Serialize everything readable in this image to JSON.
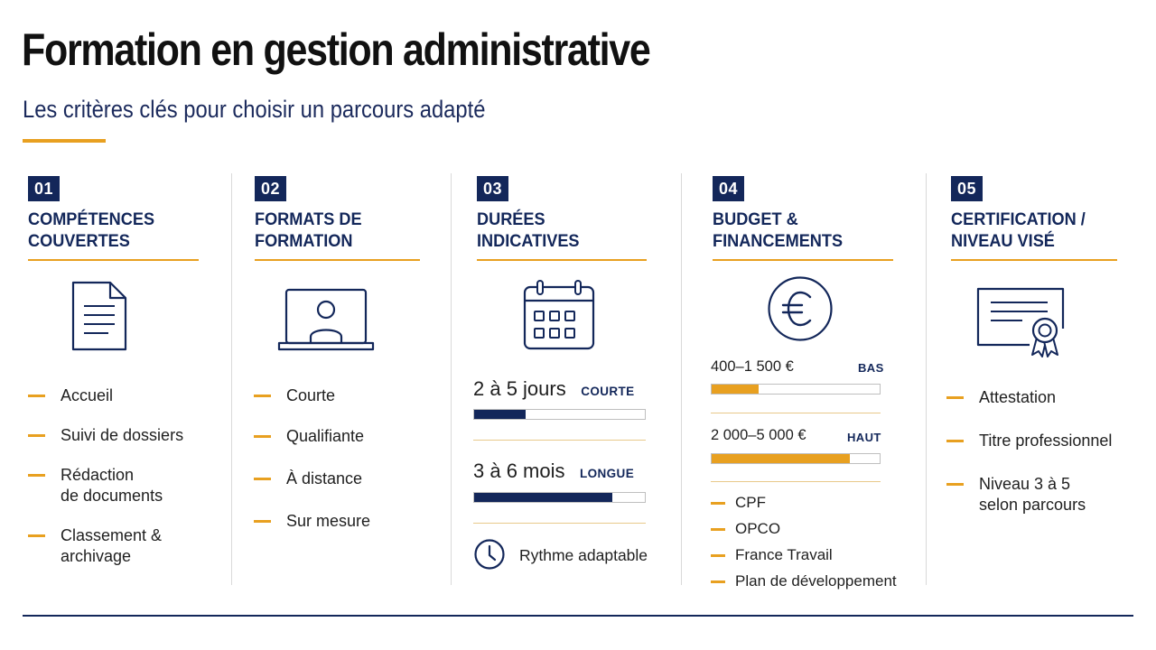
{
  "header": {
    "title": "Formation en gestion administrative",
    "subtitle": "Les critères clés pour choisir un parcours adapté"
  },
  "colors": {
    "navy": "#13275a",
    "accent": "#e8a020"
  },
  "columns": [
    {
      "number": "01",
      "title_line1": "COMPÉTENCES",
      "title_line2": "COUVERTES",
      "icon": "document-icon",
      "items": [
        "Accueil",
        "Suivi de dossiers",
        "Rédaction",
        "de documents",
        "Classement &",
        "archivage"
      ]
    },
    {
      "number": "02",
      "title_line1": "FORMATS DE",
      "title_line2": "FORMATION",
      "icon": "laptop-user-icon",
      "items": [
        "Courte",
        "Qualifiante",
        "À distance",
        "Sur mesure"
      ]
    },
    {
      "number": "03",
      "title_line1": "DURÉES",
      "title_line2": "INDICATIVES",
      "icon": "calendar-icon",
      "durations": [
        {
          "value": "2 à 5 jours",
          "tag": "COURTE",
          "level": 0.3
        },
        {
          "value": "3 à 6 mois",
          "tag": "LONGUE",
          "level": 0.81
        }
      ],
      "rhythm": "Rythme adaptable",
      "rhythm_icon": "clock-icon"
    },
    {
      "number": "04",
      "title_line1": "BUDGET &",
      "title_line2": "FINANCEMENTS",
      "icon": "euro-icon",
      "budgets": [
        {
          "range": "400–1 500 €",
          "tag": "BAS",
          "level": 0.28
        },
        {
          "range": "2 000–5 000 €",
          "tag": "HAUT",
          "level": 0.82
        }
      ],
      "funding": [
        "CPF",
        "OPCO",
        "France Travail",
        "Plan de développement"
      ]
    },
    {
      "number": "05",
      "title_line1": "CERTIFICATION /",
      "title_line2": "NIVEAU VISÉ",
      "icon": "certificate-icon",
      "items": [
        "Attestation",
        "Titre professionnel",
        "Niveau 3 à 5",
        "selon parcours"
      ]
    }
  ]
}
